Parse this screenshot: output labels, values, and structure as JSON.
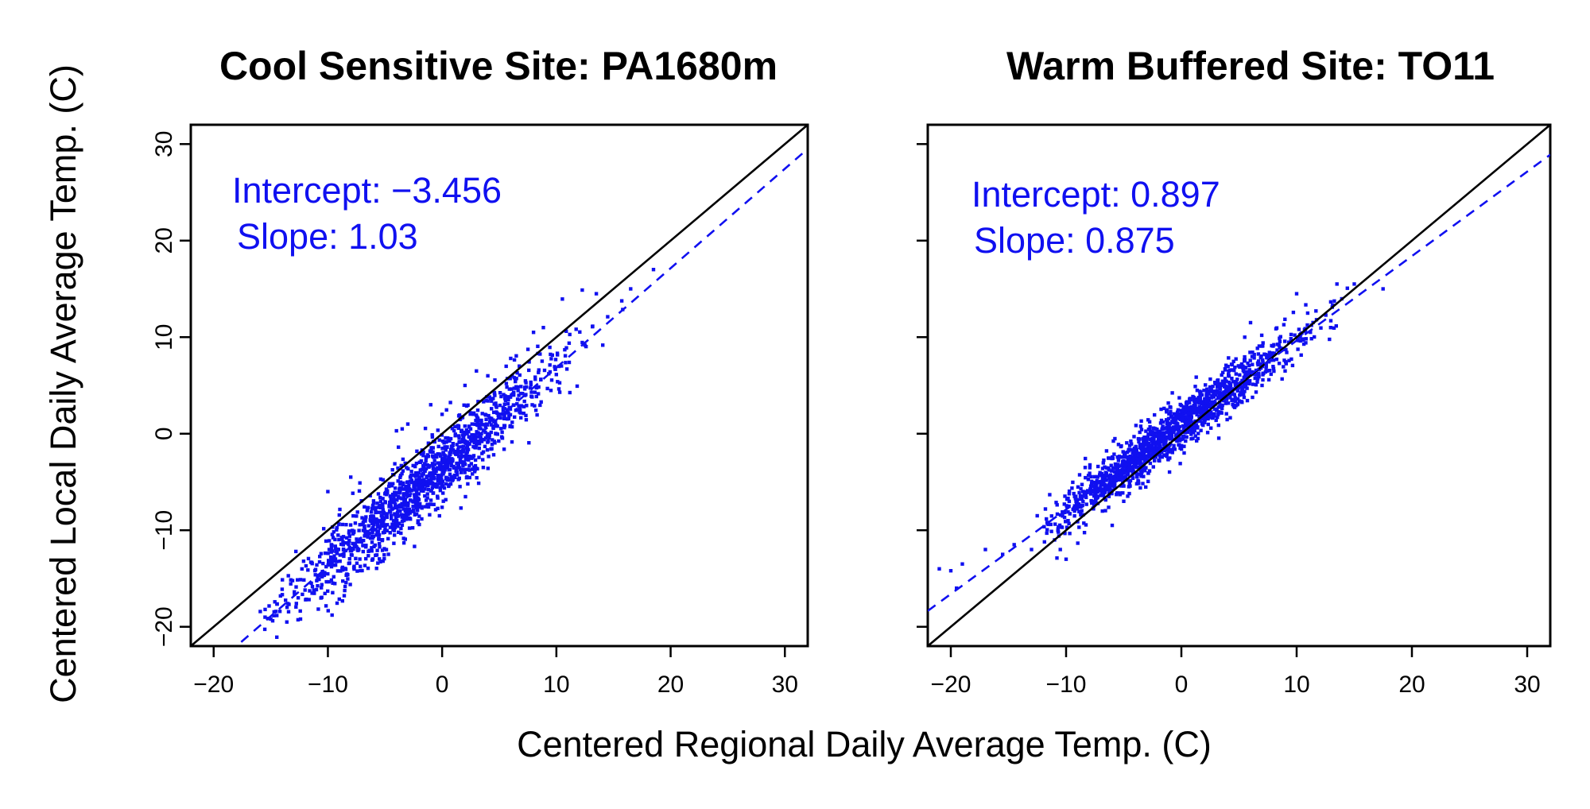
{
  "figure": {
    "ylabel": "Centered Local Daily Average Temp. (C)",
    "xlabel": "Centered Regional Daily Average Temp. (C)"
  },
  "colors": {
    "points": "#1010f0",
    "fit": "#1010f0",
    "identity": "#000000",
    "annotation": "#1010f0"
  },
  "chart_data": [
    {
      "type": "scatter",
      "title": "Cool Sensitive Site: PA1680m",
      "xlim": [
        -22,
        32
      ],
      "ylim": [
        -22,
        32
      ],
      "xticks": [
        -20,
        -10,
        0,
        10,
        20,
        30
      ],
      "yticks": [
        -20,
        -10,
        0,
        10,
        20,
        30
      ],
      "xtick_labels": [
        "−20",
        "−10",
        "0",
        "10",
        "20",
        "30"
      ],
      "ytick_labels": [
        "−20",
        "−10",
        "0",
        "10",
        "20",
        "30"
      ],
      "annotations": [
        "Intercept: −3.456",
        "Slope: 1.03"
      ],
      "identity_line": {
        "intercept": 0,
        "slope": 1
      },
      "fit_line": {
        "intercept": -3.456,
        "slope": 1.03
      },
      "point_cloud": {
        "n": 1400,
        "x_range": [
          -16,
          17
        ],
        "x_mean": -1.5,
        "x_sd": 5.8,
        "residual_sd": 1.9,
        "seed": 11
      },
      "outliers": [
        [
          -15.5,
          -19.0
        ],
        [
          -15.0,
          -19.2
        ],
        [
          -14.2,
          -18.4
        ],
        [
          -13.5,
          -17.6
        ],
        [
          -12.6,
          -17.0
        ],
        [
          -12.0,
          -16.2
        ],
        [
          -10.5,
          -14.8
        ],
        [
          -10.0,
          -6.0
        ],
        [
          -9.7,
          -11.5
        ],
        [
          -12.8,
          -12.2
        ],
        [
          -8.0,
          -4.5
        ],
        [
          -7.2,
          -5.1
        ],
        [
          -4.0,
          0.3
        ],
        [
          -3.5,
          0.5
        ],
        [
          -3.0,
          1.0
        ],
        [
          -1.0,
          3.0
        ],
        [
          0.0,
          2.0
        ],
        [
          2.0,
          5.0
        ],
        [
          3.0,
          6.5
        ],
        [
          4.0,
          6.0
        ],
        [
          6.0,
          7.8
        ],
        [
          8.0,
          10.5
        ],
        [
          13.5,
          14.5
        ],
        [
          16.5,
          15.0
        ],
        [
          18.5,
          17.0
        ]
      ]
    },
    {
      "type": "scatter",
      "title": "Warm Buffered Site: TO11",
      "xlim": [
        -22,
        32
      ],
      "ylim": [
        -22,
        32
      ],
      "xticks": [
        -20,
        -10,
        0,
        10,
        20,
        30
      ],
      "yticks": [
        -20,
        -10,
        0,
        10,
        20,
        30
      ],
      "xtick_labels": [
        "−20",
        "−10",
        "0",
        "10",
        "20",
        "30"
      ],
      "ytick_labels": [],
      "annotations": [
        "Intercept: 0.897",
        "Slope: 0.875"
      ],
      "identity_line": {
        "intercept": 0,
        "slope": 1
      },
      "fit_line": {
        "intercept": 0.897,
        "slope": 0.875
      },
      "point_cloud": {
        "n": 1500,
        "x_range": [
          -12,
          15
        ],
        "x_mean": -1.0,
        "x_sd": 5.5,
        "residual_sd": 1.3,
        "seed": 29
      },
      "outliers": [
        [
          -21.0,
          -14.0
        ],
        [
          -20.0,
          -14.2
        ],
        [
          -19.5,
          -16.0
        ],
        [
          -19.0,
          -13.5
        ],
        [
          -17.0,
          -12.0
        ],
        [
          -15.5,
          -12.5
        ],
        [
          -14.5,
          -11.5
        ],
        [
          -13.0,
          -12.0
        ],
        [
          -12.5,
          -8.5
        ],
        [
          -11.0,
          -11.0
        ],
        [
          -10.5,
          -12.0
        ],
        [
          -10.0,
          -13.0
        ],
        [
          -6.0,
          -9.5
        ],
        [
          -5.0,
          -7.0
        ],
        [
          5.5,
          10.0
        ],
        [
          6.0,
          11.5
        ],
        [
          10.0,
          14.5
        ],
        [
          13.5,
          15.5
        ],
        [
          15.0,
          15.5
        ],
        [
          17.5,
          15.0
        ],
        [
          7.0,
          5.0
        ],
        [
          9.0,
          6.5
        ]
      ]
    }
  ]
}
